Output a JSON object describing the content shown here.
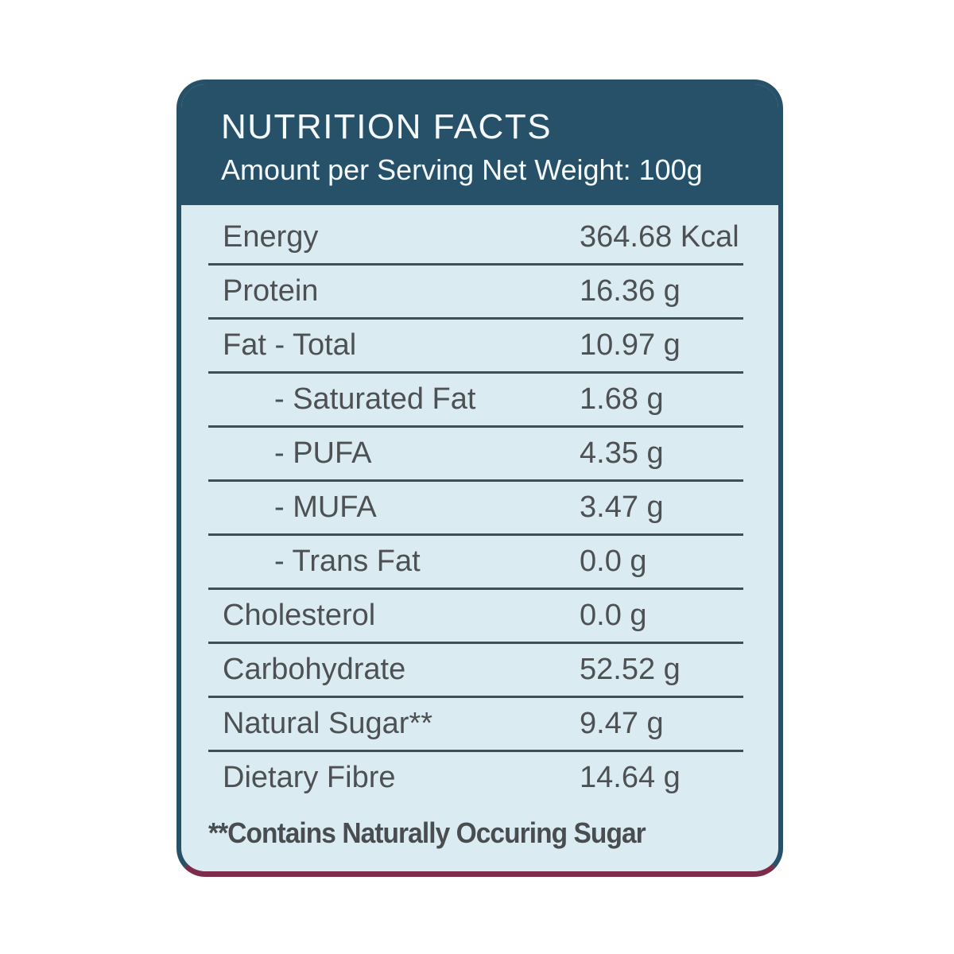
{
  "card": {
    "header": {
      "title": "NUTRITION FACTS",
      "subtitle": "Amount per Serving Net Weight: 100g"
    },
    "rows": [
      {
        "label": "Energy",
        "value": "364.68 Kcal",
        "indent": false
      },
      {
        "label": "Protein",
        "value": "16.36 g",
        "indent": false
      },
      {
        "label": "Fat - Total",
        "value": "10.97 g",
        "indent": false
      },
      {
        "label": "- Saturated Fat",
        "value": "1.68 g",
        "indent": true
      },
      {
        "label": "- PUFA",
        "value": "4.35 g",
        "indent": true
      },
      {
        "label": "- MUFA",
        "value": "3.47 g",
        "indent": true
      },
      {
        "label": "- Trans Fat",
        "value": "0.0 g",
        "indent": true
      },
      {
        "label": "Cholesterol",
        "value": "0.0 g",
        "indent": false
      },
      {
        "label": "Carbohydrate",
        "value": "52.52 g",
        "indent": false
      },
      {
        "label": "Natural Sugar**",
        "value": "9.47 g",
        "indent": false
      },
      {
        "label": "Dietary Fibre",
        "value": "14.64 g",
        "indent": false
      }
    ],
    "footnote": "**Contains Naturally Occuring Sugar",
    "colors": {
      "header_bg": "#275069",
      "body_bg": "#daecf1",
      "header_text": "#f4fafc",
      "row_text": "#4e5154",
      "divider": "#3f4e57",
      "bottom_accent": "#7e2c4b",
      "page_bg": "#ffffff"
    }
  }
}
